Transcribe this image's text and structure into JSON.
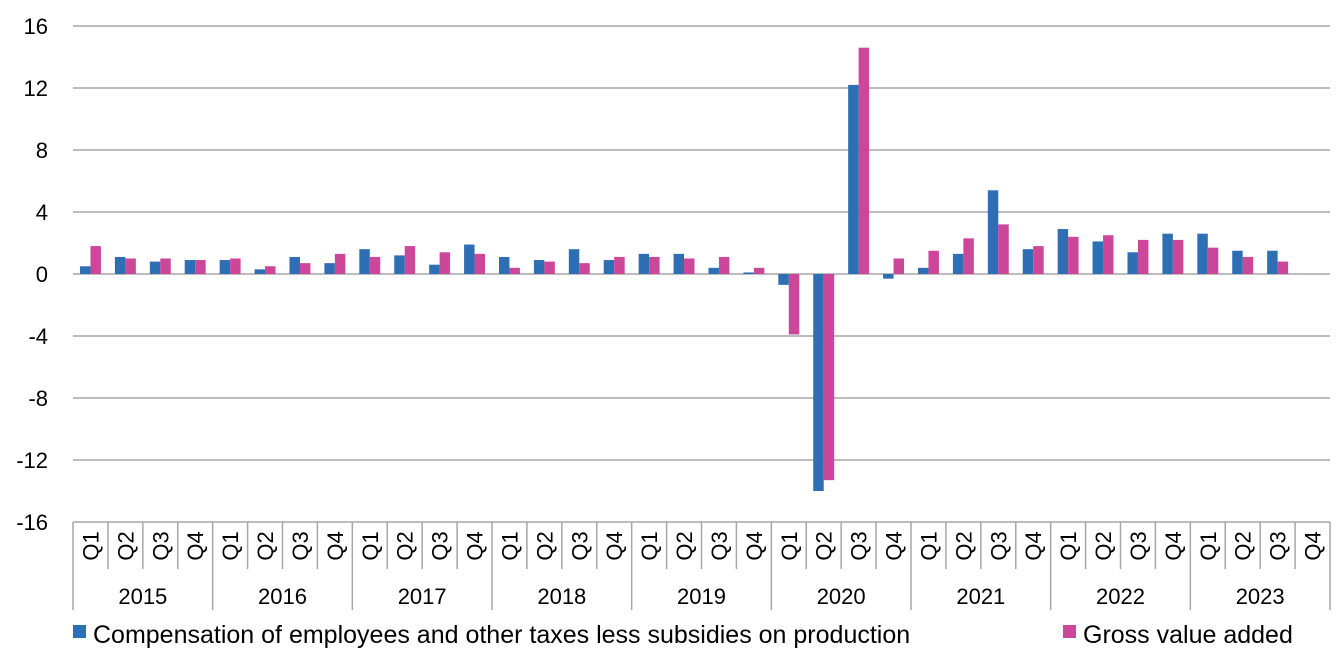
{
  "chart_data": {
    "type": "bar",
    "title": "",
    "xlabel": "",
    "ylabel": "",
    "ylim": [
      -16,
      16
    ],
    "yticks": [
      "16",
      "12",
      "8",
      "4",
      "0",
      "-4",
      "-8",
      "-12",
      "-16"
    ],
    "ytick_values": [
      16,
      12,
      8,
      4,
      0,
      -4,
      -8,
      -12,
      -16
    ],
    "grid": true,
    "legend_position": "bottom",
    "quarters": [
      "Q1",
      "Q2",
      "Q3",
      "Q4"
    ],
    "years": [
      "2015",
      "2016",
      "2017",
      "2018",
      "2019",
      "2020",
      "2021",
      "2022",
      "2023"
    ],
    "series": [
      {
        "name": "Compensation of employees and other taxes less subsidies on production",
        "color": "#2e6eb5",
        "values": [
          0.5,
          1.1,
          0.8,
          0.9,
          0.9,
          0.3,
          1.1,
          0.7,
          1.6,
          1.2,
          0.6,
          1.9,
          1.1,
          0.9,
          1.6,
          0.9,
          1.3,
          1.3,
          0.4,
          0.1,
          -0.7,
          -14.0,
          12.2,
          -0.3,
          0.4,
          1.3,
          5.4,
          1.6,
          2.9,
          2.1,
          1.4,
          2.6,
          2.6,
          1.5,
          1.5,
          null
        ]
      },
      {
        "name": "Gross value added",
        "color": "#cc4699",
        "values": [
          1.8,
          1.0,
          1.0,
          0.9,
          1.0,
          0.5,
          0.7,
          1.3,
          1.1,
          1.8,
          1.4,
          1.3,
          0.4,
          0.8,
          0.7,
          1.1,
          1.1,
          1.0,
          1.1,
          0.4,
          -3.9,
          -13.3,
          14.6,
          1.0,
          1.5,
          2.3,
          3.2,
          1.8,
          2.4,
          2.5,
          2.2,
          2.2,
          1.7,
          1.1,
          0.8,
          null
        ]
      }
    ]
  }
}
